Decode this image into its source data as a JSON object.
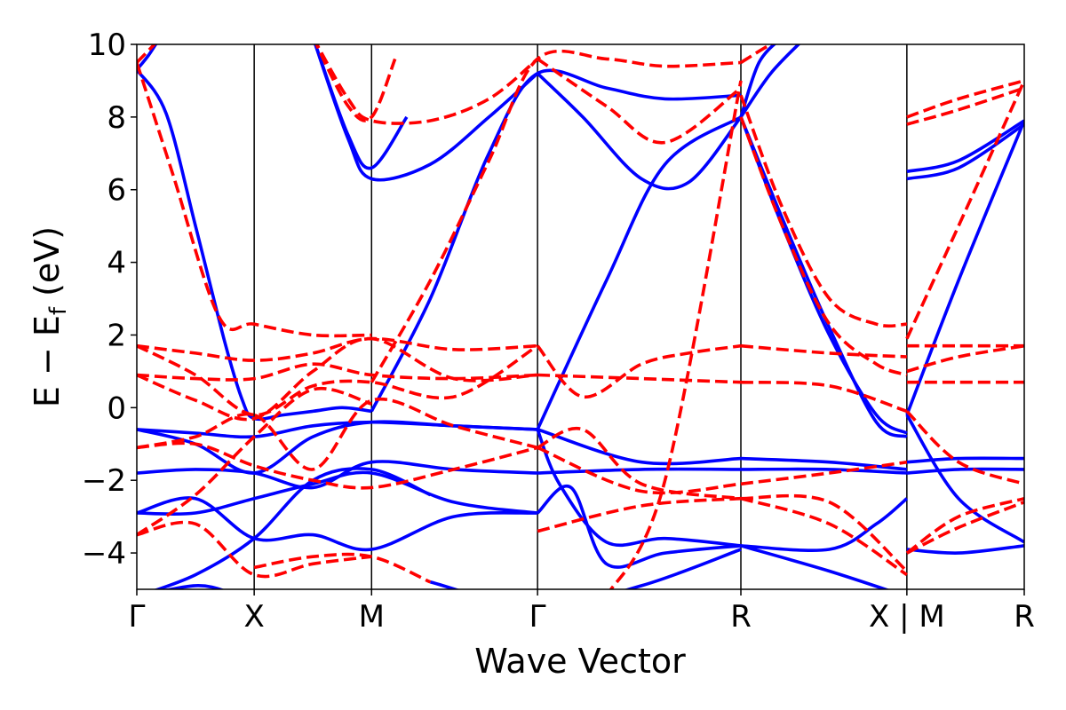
{
  "chart_data": {
    "type": "line",
    "title": "",
    "xlabel": "Wave Vector",
    "ylabel": "E − E",
    "ylabel_subscript": "f",
    "ylabel_unit": " (eV)",
    "ylim": [
      -5,
      10
    ],
    "xlim": [
      0,
      7.5
    ],
    "yticks": [
      -4,
      -2,
      0,
      2,
      4,
      6,
      8,
      10
    ],
    "ytick_labels": [
      "−4",
      "−2",
      "0",
      "2",
      "4",
      "6",
      "8",
      "10"
    ],
    "kpoints": [
      {
        "x": 0.0,
        "label": "Γ"
      },
      {
        "x": 1.0,
        "label": "X"
      },
      {
        "x": 2.0,
        "label": "M"
      },
      {
        "x": 3.414,
        "label": "Γ"
      },
      {
        "x": 5.146,
        "label": "R"
      },
      {
        "x": 6.56,
        "label": "X | M"
      },
      {
        "x": 7.56,
        "label": "R"
      }
    ],
    "segment_break_x": 6.56,
    "series_styles": {
      "blue": {
        "color": "#0000ff",
        "dash": "solid"
      },
      "red": {
        "color": "#ff0000",
        "dash": "dashed"
      }
    },
    "series": [
      {
        "style": "blue",
        "x": [
          0,
          0.25,
          0.5,
          0.75,
          0.9,
          1.0,
          1.25,
          1.5,
          1.75,
          2.0
        ],
        "y": [
          9.3,
          8.1,
          5.0,
          1.8,
          0.2,
          -0.3,
          -0.2,
          -0.1,
          0.0,
          -0.1
        ]
      },
      {
        "style": "blue",
        "x": [
          0.0,
          0.1,
          0.2
        ],
        "y": [
          9.3,
          9.7,
          10.2
        ]
      },
      {
        "style": "blue",
        "x": [
          0,
          0.5,
          1.0,
          1.5,
          2.0,
          2.7,
          3.414
        ],
        "y": [
          -0.6,
          -1.0,
          -1.8,
          -0.8,
          -0.4,
          -0.5,
          -0.6
        ]
      },
      {
        "style": "blue",
        "x": [
          0,
          0.5,
          1.0,
          1.5,
          2.0,
          2.7,
          3.414
        ],
        "y": [
          -0.6,
          -0.7,
          -0.8,
          -0.5,
          -0.4,
          -0.5,
          -0.6
        ]
      },
      {
        "style": "blue",
        "x": [
          0,
          0.5,
          1.0,
          1.5,
          2.0,
          2.7,
          3.414
        ],
        "y": [
          -1.8,
          -1.7,
          -1.8,
          -2.2,
          -1.5,
          -1.7,
          -1.8
        ]
      },
      {
        "style": "blue",
        "x": [
          0,
          0.5,
          1.0,
          1.5,
          2.0,
          2.7,
          3.414
        ],
        "y": [
          -2.9,
          -2.9,
          -2.5,
          -2.1,
          -1.8,
          -2.6,
          -2.9
        ]
      },
      {
        "style": "blue",
        "x": [
          0,
          0.5,
          1.0,
          1.5,
          2.0,
          2.7,
          3.414
        ],
        "y": [
          -2.9,
          -2.5,
          -3.6,
          -3.5,
          -3.9,
          -3.0,
          -2.9
        ]
      },
      {
        "style": "blue",
        "x": [
          0,
          0.5,
          1.0,
          1.5,
          2.0,
          2.5
        ],
        "y": [
          -5.2,
          -4.6,
          -3.6,
          -2.0,
          -1.7,
          -2.4
        ]
      },
      {
        "style": "blue",
        "x": [
          0,
          0.5,
          0.8,
          1.0
        ],
        "y": [
          -5.2,
          -4.9,
          -5.1,
          -5.4
        ]
      },
      {
        "style": "blue",
        "x": [
          1.5,
          1.8,
          2.0,
          2.5,
          3.0,
          3.414
        ],
        "y": [
          10.2,
          7.4,
          6.3,
          6.7,
          8.0,
          9.2
        ]
      },
      {
        "style": "blue",
        "x": [
          1.5,
          1.8,
          2.0,
          2.3
        ],
        "y": [
          10.2,
          7.5,
          6.6,
          8.0
        ]
      },
      {
        "style": "blue",
        "x": [
          2.0,
          2.5,
          3.0,
          3.414,
          4.0,
          4.5,
          5.146
        ],
        "y": [
          -0.1,
          3.0,
          7.0,
          9.2,
          8.8,
          8.5,
          8.6
        ]
      },
      {
        "style": "blue",
        "x": [
          3.414,
          3.8,
          4.3,
          4.7,
          5.146
        ],
        "y": [
          9.2,
          8.0,
          6.3,
          6.2,
          8.0
        ]
      },
      {
        "style": "blue",
        "x": [
          3.414,
          4.0,
          4.5,
          5.146
        ],
        "y": [
          -0.6,
          3.5,
          6.7,
          8.0
        ]
      },
      {
        "style": "blue",
        "x": [
          3.414,
          4.3,
          5.146
        ],
        "y": [
          -0.6,
          -1.5,
          -1.4
        ]
      },
      {
        "style": "blue",
        "x": [
          3.414,
          4.3,
          5.146
        ],
        "y": [
          -1.8,
          -1.7,
          -1.7
        ]
      },
      {
        "style": "blue",
        "x": [
          3.414,
          3.6,
          4.0,
          4.5,
          5.146
        ],
        "y": [
          -0.6,
          -2.1,
          -3.7,
          -3.6,
          -3.8
        ]
      },
      {
        "style": "blue",
        "x": [
          3.414,
          3.7,
          4.0,
          4.5,
          5.146
        ],
        "y": [
          -2.9,
          -2.2,
          -4.3,
          -4.0,
          -3.8
        ]
      },
      {
        "style": "blue",
        "x": [
          2.5,
          3.414,
          4.3,
          5.146
        ],
        "y": [
          -4.8,
          -5.5,
          -4.9,
          -3.9
        ]
      },
      {
        "style": "blue",
        "x": [
          5.146,
          5.5,
          5.9,
          6.3,
          6.56
        ],
        "y": [
          8.0,
          5.0,
          2.0,
          -0.2,
          -0.7
        ]
      },
      {
        "style": "blue",
        "x": [
          5.146,
          5.5,
          5.9,
          6.3,
          6.56
        ],
        "y": [
          8.0,
          5.2,
          2.2,
          -0.4,
          -0.8
        ]
      },
      {
        "style": "blue",
        "x": [
          5.146,
          5.3,
          5.5
        ],
        "y": [
          8.0,
          9.5,
          10.2
        ]
      },
      {
        "style": "blue",
        "x": [
          5.146,
          5.4,
          5.7
        ],
        "y": [
          8.0,
          9.2,
          10.2
        ]
      },
      {
        "style": "blue",
        "x": [
          5.146,
          5.9,
          6.56
        ],
        "y": [
          -1.4,
          -1.5,
          -1.7
        ]
      },
      {
        "style": "blue",
        "x": [
          5.146,
          5.9,
          6.56
        ],
        "y": [
          -1.7,
          -1.7,
          -1.8
        ]
      },
      {
        "style": "blue",
        "x": [
          5.146,
          5.9,
          6.3,
          6.56
        ],
        "y": [
          -3.8,
          -3.9,
          -3.2,
          -2.5
        ]
      },
      {
        "style": "blue",
        "x": [
          5.146,
          5.9,
          6.56
        ],
        "y": [
          -3.8,
          -4.5,
          -5.2
        ]
      },
      {
        "style": "blue",
        "x": [
          6.56,
          7.0,
          7.56
        ],
        "y": [
          6.5,
          6.8,
          7.9
        ]
      },
      {
        "style": "blue",
        "x": [
          6.56,
          7.0,
          7.56
        ],
        "y": [
          6.3,
          6.6,
          7.8
        ]
      },
      {
        "style": "blue",
        "x": [
          6.56,
          7.0,
          7.56
        ],
        "y": [
          -0.2,
          3.5,
          7.9
        ]
      },
      {
        "style": "blue",
        "x": [
          6.56,
          7.0,
          7.56
        ],
        "y": [
          -1.5,
          -1.4,
          -1.4
        ]
      },
      {
        "style": "blue",
        "x": [
          6.56,
          7.0,
          7.56
        ],
        "y": [
          -1.8,
          -1.7,
          -1.7
        ]
      },
      {
        "style": "blue",
        "x": [
          6.56,
          7.0,
          7.56
        ],
        "y": [
          -3.9,
          -4.0,
          -3.8
        ]
      },
      {
        "style": "blue",
        "x": [
          6.56,
          7.0,
          7.56
        ],
        "y": [
          -0.2,
          -2.5,
          -3.7
        ]
      },
      {
        "style": "red",
        "x": [
          0,
          0.15,
          0.3
        ],
        "y": [
          9.5,
          10.0,
          10.5
        ]
      },
      {
        "style": "red",
        "x": [
          0,
          0.3,
          0.7,
          1.0,
          1.5,
          2.0
        ],
        "y": [
          9.5,
          6.5,
          2.5,
          2.3,
          2.0,
          2.0
        ]
      },
      {
        "style": "red",
        "x": [
          0,
          0.5,
          1.0,
          1.5,
          2.0,
          2.7,
          3.414
        ],
        "y": [
          1.7,
          1.5,
          1.3,
          1.5,
          1.9,
          1.6,
          1.7
        ]
      },
      {
        "style": "red",
        "x": [
          0,
          0.5,
          1.0,
          1.5,
          2.0,
          2.7,
          3.414
        ],
        "y": [
          0.9,
          0.8,
          0.8,
          1.2,
          0.9,
          0.8,
          0.9
        ]
      },
      {
        "style": "red",
        "x": [
          0,
          0.5,
          1.0,
          1.5,
          2.0,
          2.7,
          3.414
        ],
        "y": [
          1.7,
          0.9,
          -0.2,
          0.6,
          0.7,
          0.3,
          1.7
        ]
      },
      {
        "style": "red",
        "x": [
          0,
          0.5,
          1.0,
          1.5,
          2.0,
          2.7,
          3.414
        ],
        "y": [
          0.9,
          0.2,
          -0.3,
          1.0,
          1.9,
          0.8,
          0.9
        ]
      },
      {
        "style": "red",
        "x": [
          0,
          0.5,
          1.0,
          1.5,
          2.0,
          2.7,
          3.414
        ],
        "y": [
          -1.1,
          -1.0,
          -1.6,
          -2.0,
          -2.2,
          -1.7,
          -1.1
        ]
      },
      {
        "style": "red",
        "x": [
          0,
          0.5,
          1.0,
          1.5,
          2.0,
          2.7,
          3.414
        ],
        "y": [
          -1.1,
          -0.8,
          -0.2,
          -1.7,
          0.2,
          -0.5,
          -1.1
        ]
      },
      {
        "style": "red",
        "x": [
          0,
          0.5,
          1.0,
          1.5,
          2.0
        ],
        "y": [
          -3.5,
          -3.2,
          -4.6,
          -4.3,
          -4.1
        ]
      },
      {
        "style": "red",
        "x": [
          0,
          0.5,
          1.0,
          1.5,
          2.0
        ],
        "y": [
          -3.5,
          -2.4,
          -0.8,
          0.5,
          0.1
        ]
      },
      {
        "style": "red",
        "x": [
          1.0,
          1.5,
          2.0,
          2.5
        ],
        "y": [
          -4.4,
          -4.1,
          -4.1,
          -4.8
        ]
      },
      {
        "style": "red",
        "x": [
          1.5,
          1.8,
          2.0,
          2.5,
          3.0,
          3.414
        ],
        "y": [
          10.2,
          8.5,
          7.9,
          7.9,
          8.5,
          9.6
        ]
      },
      {
        "style": "red",
        "x": [
          1.5,
          1.8,
          2.0,
          2.2
        ],
        "y": [
          10.2,
          8.3,
          8.0,
          9.6
        ]
      },
      {
        "style": "red",
        "x": [
          2.0,
          2.5,
          3.0,
          3.414,
          4.0,
          4.5,
          5.146
        ],
        "y": [
          0.7,
          3.5,
          6.8,
          9.6,
          9.6,
          9.4,
          9.5
        ]
      },
      {
        "style": "red",
        "x": [
          3.414,
          4.0,
          4.5,
          5.146
        ],
        "y": [
          9.6,
          8.3,
          7.3,
          8.8
        ]
      },
      {
        "style": "red",
        "x": [
          3.414,
          3.8,
          4.3,
          4.7,
          5.146
        ],
        "y": [
          1.7,
          0.3,
          1.2,
          1.5,
          1.7
        ]
      },
      {
        "style": "red",
        "x": [
          3.414,
          4.3,
          5.146
        ],
        "y": [
          0.9,
          0.8,
          0.7
        ]
      },
      {
        "style": "red",
        "x": [
          3.414,
          4.3,
          5.146
        ],
        "y": [
          -1.1,
          -2.3,
          -2.1
        ]
      },
      {
        "style": "red",
        "x": [
          3.414,
          4.3,
          5.146
        ],
        "y": [
          -3.4,
          -2.7,
          -2.5
        ]
      },
      {
        "style": "red",
        "x": [
          3.414,
          3.8,
          4.3,
          5.146
        ],
        "y": [
          -1.1,
          -0.6,
          -2.1,
          -2.5
        ]
      },
      {
        "style": "red",
        "x": [
          4.0,
          4.5,
          5.146
        ],
        "y": [
          -5.2,
          -2.0,
          9.0
        ]
      },
      {
        "style": "red",
        "x": [
          5.146,
          5.5,
          5.9,
          6.3,
          6.56
        ],
        "y": [
          8.6,
          5.5,
          3.0,
          2.3,
          2.3
        ]
      },
      {
        "style": "red",
        "x": [
          5.146,
          5.5,
          5.9,
          6.3,
          6.56
        ],
        "y": [
          8.0,
          5.0,
          2.3,
          1.2,
          0.9
        ]
      },
      {
        "style": "red",
        "x": [
          5.146,
          5.9,
          6.56
        ],
        "y": [
          1.7,
          1.5,
          1.4
        ]
      },
      {
        "style": "red",
        "x": [
          5.146,
          5.9,
          6.56
        ],
        "y": [
          0.7,
          0.6,
          -0.1
        ]
      },
      {
        "style": "red",
        "x": [
          5.146,
          5.9,
          6.56
        ],
        "y": [
          -2.1,
          -1.8,
          -1.5
        ]
      },
      {
        "style": "red",
        "x": [
          5.146,
          5.9,
          6.56
        ],
        "y": [
          -2.5,
          -2.6,
          -4.5
        ]
      },
      {
        "style": "red",
        "x": [
          5.146,
          5.9,
          6.56
        ],
        "y": [
          -2.5,
          -3.2,
          -4.6
        ]
      },
      {
        "style": "red",
        "x": [
          5.146,
          5.4,
          5.7
        ],
        "y": [
          9.5,
          10.0,
          10.5
        ]
      },
      {
        "style": "red",
        "x": [
          6.56,
          7.0,
          7.56
        ],
        "y": [
          8.0,
          8.5,
          9.0
        ]
      },
      {
        "style": "red",
        "x": [
          6.56,
          7.0,
          7.56
        ],
        "y": [
          7.8,
          8.2,
          8.8
        ]
      },
      {
        "style": "red",
        "x": [
          6.56,
          7.0,
          7.56
        ],
        "y": [
          1.9,
          5.0,
          9.0
        ]
      },
      {
        "style": "red",
        "x": [
          6.56,
          7.0,
          7.56
        ],
        "y": [
          1.7,
          1.7,
          1.7
        ]
      },
      {
        "style": "red",
        "x": [
          6.56,
          7.0,
          7.56
        ],
        "y": [
          1.0,
          1.4,
          1.7
        ]
      },
      {
        "style": "red",
        "x": [
          6.56,
          7.0,
          7.56
        ],
        "y": [
          0.7,
          0.7,
          0.7
        ]
      },
      {
        "style": "red",
        "x": [
          6.56,
          7.0,
          7.56
        ],
        "y": [
          -0.1,
          -1.5,
          -2.1
        ]
      },
      {
        "style": "red",
        "x": [
          6.56,
          7.0,
          7.56
        ],
        "y": [
          -4.0,
          -3.0,
          -2.5
        ]
      },
      {
        "style": "red",
        "x": [
          6.56,
          7.0,
          7.56
        ],
        "y": [
          -4.0,
          -3.3,
          -2.6
        ]
      }
    ]
  }
}
